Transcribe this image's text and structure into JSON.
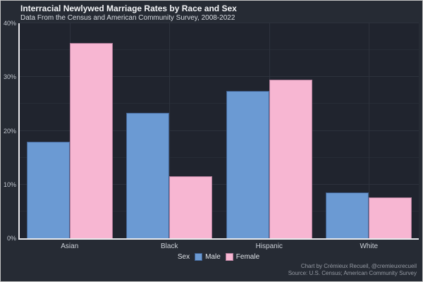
{
  "header": {
    "title": "Interracial Newlywed Marriage Rates by Race and Sex",
    "subtitle": "Data From the Census and American Community Survey, 2008-2022"
  },
  "legend": {
    "title": "Sex"
  },
  "footer": {
    "credit": "Chart by Crémieux Recueil, @cremieuxrecueil",
    "source": "Source: U.S. Census; American Community Survey"
  },
  "colors": {
    "background": "#262b34",
    "panel_background": "#20242e",
    "grid_major": "#2d323d",
    "grid_minor": "#272c36",
    "axis_line": "#e9eaee",
    "male_bar": "#6b9ad3",
    "female_bar": "#f7b6d2"
  },
  "chart_data": {
    "type": "bar",
    "title": "Interracial Newlywed Marriage Rates by Race and Sex",
    "subtitle": "Data From the Census and American Community Survey, 2008-2022",
    "categories": [
      "Asian",
      "Black",
      "Hispanic",
      "White"
    ],
    "series": [
      {
        "name": "Male",
        "color": "#6b9ad3",
        "border": "#3f5f8d",
        "values": [
          18.0,
          23.3,
          27.4,
          8.5
        ]
      },
      {
        "name": "Female",
        "color": "#f7b6d2",
        "border": "#b07c99",
        "values": [
          36.3,
          11.5,
          29.5,
          7.6
        ]
      }
    ],
    "xlabel": "",
    "ylabel": "",
    "ylim": [
      0,
      40
    ],
    "yticks": [
      0,
      10,
      20,
      30,
      40
    ],
    "yticks_minor": [
      5,
      15,
      25,
      35
    ],
    "ytick_suffix": "%",
    "grid": true,
    "legend_title": "Sex",
    "legend_position": "bottom"
  }
}
